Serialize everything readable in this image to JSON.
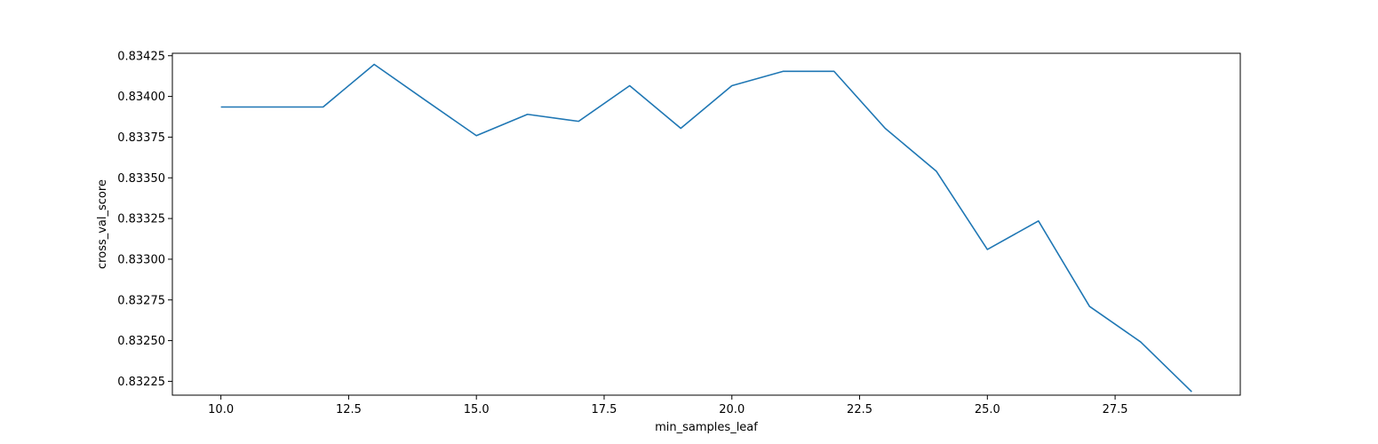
{
  "chart_data": {
    "type": "line",
    "title": "",
    "xlabel": "min_samples_leaf",
    "ylabel": "cross_val_score",
    "xlim": [
      9.05,
      29.95
    ],
    "ylim": [
      0.832165,
      0.834265
    ],
    "xticks": [
      10.0,
      12.5,
      15.0,
      17.5,
      20.0,
      22.5,
      25.0,
      27.5
    ],
    "xtick_labels": [
      "10.0",
      "12.5",
      "15.0",
      "17.5",
      "20.0",
      "22.5",
      "25.0",
      "27.5"
    ],
    "yticks": [
      0.83225,
      0.8325,
      0.83275,
      0.833,
      0.83325,
      0.8335,
      0.83375,
      0.834,
      0.83425
    ],
    "ytick_labels": [
      "0.83225",
      "0.83250",
      "0.83275",
      "0.83300",
      "0.83325",
      "0.83350",
      "0.83375",
      "0.83400",
      "0.83425"
    ],
    "grid": false,
    "series": [
      {
        "color": "#1f77b4",
        "x": [
          10,
          11,
          12,
          13,
          14,
          15,
          16,
          17,
          18,
          19,
          20,
          21,
          22,
          23,
          24,
          25,
          26,
          27,
          28,
          29
        ],
        "y": [
          0.833935,
          0.833935,
          0.833935,
          0.834197,
          0.833977,
          0.833759,
          0.83389,
          0.833847,
          0.834066,
          0.833804,
          0.834066,
          0.834154,
          0.834154,
          0.833804,
          0.833541,
          0.83306,
          0.833235,
          0.83271,
          0.832492,
          0.832186
        ]
      }
    ]
  }
}
